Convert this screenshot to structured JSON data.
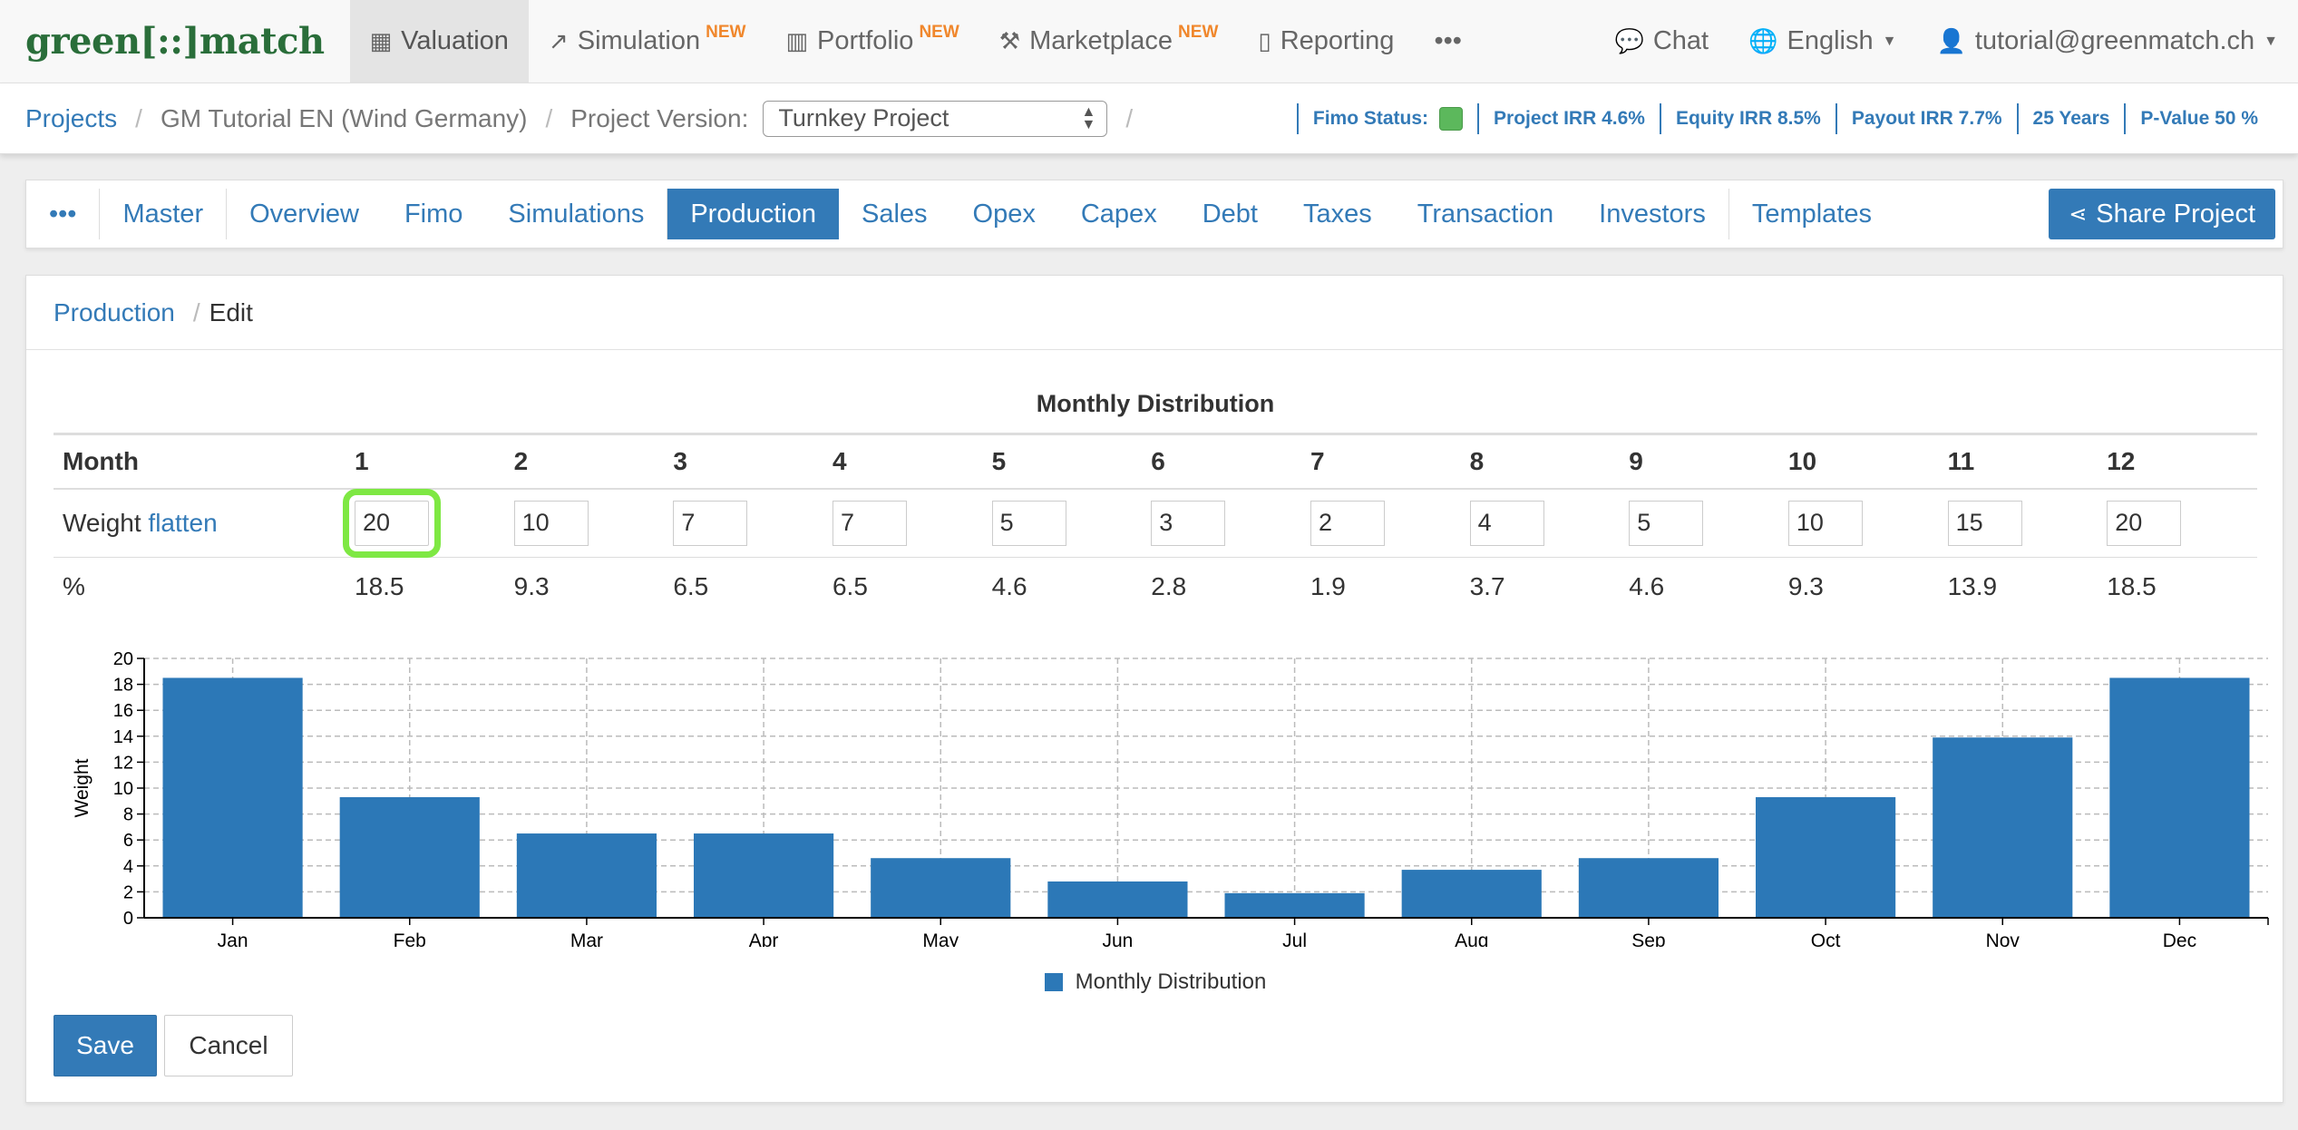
{
  "brand": {
    "left": "green",
    "mid": "[::]",
    "right": "match"
  },
  "topnav": {
    "items": [
      {
        "key": "valuation",
        "icon": "dashboard-icon",
        "glyph": "▦",
        "label": "Valuation",
        "badge": "",
        "active": true
      },
      {
        "key": "simulation",
        "icon": "line-chart-icon",
        "glyph": "↗",
        "label": "Simulation",
        "badge": "NEW",
        "active": false
      },
      {
        "key": "portfolio",
        "icon": "bar-chart-icon",
        "glyph": "▥",
        "label": "Portfolio",
        "badge": "NEW",
        "active": false
      },
      {
        "key": "marketplace",
        "icon": "gavel-icon",
        "glyph": "⚒",
        "label": "Marketplace",
        "badge": "NEW",
        "active": false
      },
      {
        "key": "reporting",
        "icon": "file-icon",
        "glyph": "▯",
        "label": "Reporting",
        "badge": "",
        "active": false
      }
    ],
    "more": "•••",
    "chat": "Chat",
    "language": "English",
    "user": "tutorial@greenmatch.ch"
  },
  "breadcrumb": {
    "projects": "Projects",
    "project": "GM Tutorial EN (Wind Germany)",
    "version_label": "Project Version:",
    "version_value": "Turnkey Project"
  },
  "status": {
    "fimo": "Fimo Status:",
    "fimo_color": "#5cb85c",
    "project_irr": "Project IRR 4.6%",
    "equity_irr": "Equity IRR 8.5%",
    "payout_irr": "Payout IRR 7.7%",
    "years": "25 Years",
    "pvalue": "P-Value 50 %"
  },
  "tabs": {
    "more": "•••",
    "items": [
      "Master",
      "Overview",
      "Fimo",
      "Simulations",
      "Production",
      "Sales",
      "Opex",
      "Capex",
      "Debt",
      "Taxes",
      "Transaction",
      "Investors",
      "Templates"
    ],
    "active": "Production",
    "share": "Share Project"
  },
  "panel": {
    "crumb_link": "Production",
    "crumb_current": "Edit",
    "title": "Monthly Distribution"
  },
  "table": {
    "month_label": "Month",
    "weight_label": "Weight",
    "flatten": "flatten",
    "percent_label": "%",
    "months": [
      "1",
      "2",
      "3",
      "4",
      "5",
      "6",
      "7",
      "8",
      "9",
      "10",
      "11",
      "12"
    ],
    "weights": [
      "20",
      "10",
      "7",
      "7",
      "5",
      "3",
      "2",
      "4",
      "5",
      "10",
      "15",
      "20"
    ],
    "percents": [
      "18.5",
      "9.3",
      "6.5",
      "6.5",
      "4.6",
      "2.8",
      "1.9",
      "3.7",
      "4.6",
      "9.3",
      "13.9",
      "18.5"
    ]
  },
  "chart_data": {
    "type": "bar",
    "categories": [
      "Jan",
      "Feb",
      "Mar",
      "Apr",
      "May",
      "Jun",
      "Jul",
      "Aug",
      "Sep",
      "Oct",
      "Nov",
      "Dec"
    ],
    "series": [
      {
        "name": "Monthly Distribution",
        "values": [
          18.5,
          9.3,
          6.5,
          6.5,
          4.6,
          2.8,
          1.9,
          3.7,
          4.6,
          9.3,
          13.9,
          18.5
        ]
      }
    ],
    "ylabel": "Weight",
    "xlabel": "",
    "ylim": [
      0,
      20
    ],
    "yticks": [
      0,
      2,
      4,
      6,
      8,
      10,
      12,
      14,
      16,
      18,
      20
    ],
    "grid": true,
    "bar_color": "#2c78b7",
    "legend": "bottom-center"
  },
  "buttons": {
    "save": "Save",
    "cancel": "Cancel"
  }
}
